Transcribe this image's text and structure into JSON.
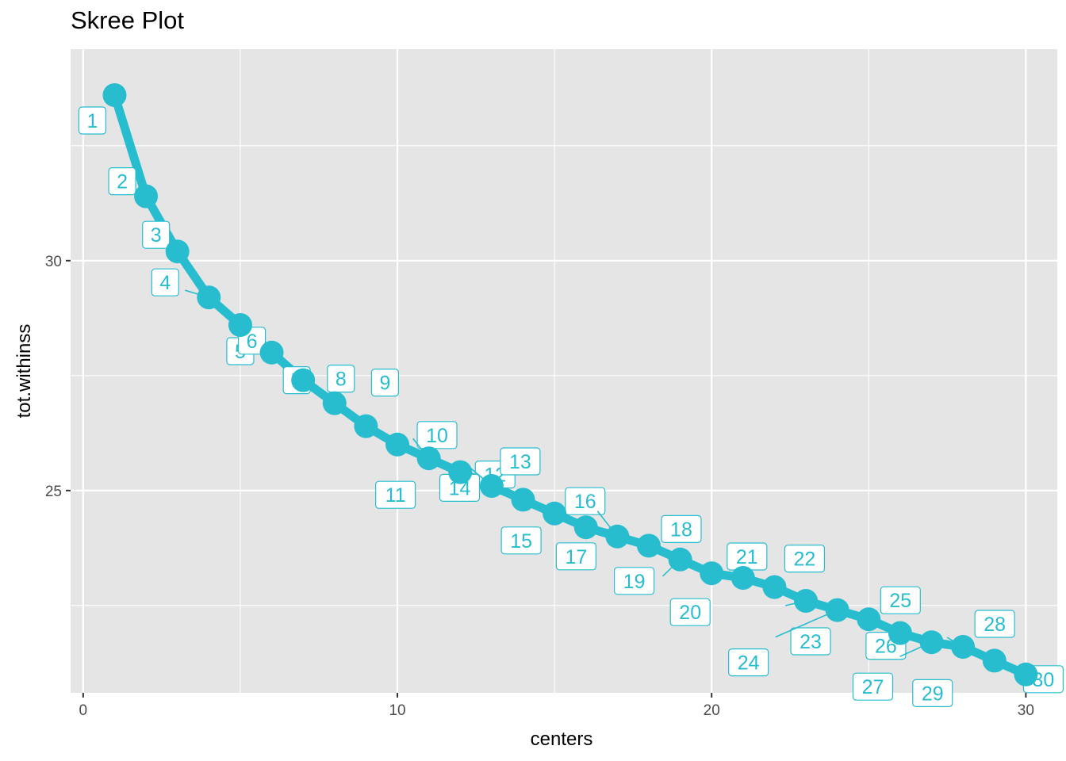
{
  "chart_data": {
    "type": "line",
    "title": "Skree Plot",
    "xlabel": "centers",
    "ylabel": "tot.withinss",
    "xlim": [
      -0.4,
      31.0
    ],
    "ylim": [
      20.6,
      34.6
    ],
    "x_ticks": [
      0,
      10,
      20,
      30
    ],
    "x_tick_labels": [
      "0",
      "10",
      "20",
      "30"
    ],
    "y_ticks": [
      25,
      30
    ],
    "y_tick_labels": [
      "25",
      "30"
    ],
    "grid": true,
    "legend": "none",
    "series": [
      {
        "x": [
          1,
          2,
          3,
          4,
          5,
          6,
          7,
          8,
          9,
          10,
          11,
          12,
          13,
          14,
          15,
          16,
          17,
          18,
          19,
          20,
          21,
          22,
          23,
          24,
          25,
          26,
          27,
          28,
          29,
          30
        ],
        "values": [
          33.6,
          31.4,
          30.2,
          29.2,
          28.6,
          28.0,
          27.4,
          26.9,
          26.4,
          26.0,
          25.7,
          25.4,
          25.1,
          24.8,
          24.5,
          24.2,
          24.0,
          23.8,
          23.5,
          23.2,
          23.1,
          22.9,
          22.6,
          22.4,
          22.2,
          21.9,
          21.7,
          21.6,
          21.3,
          21.0
        ]
      }
    ],
    "point_labels": [
      "1",
      "2",
      "3",
      "4",
      "5",
      "6",
      "7",
      "8",
      "9",
      "10",
      "11",
      "12",
      "13",
      "14",
      "15",
      "16",
      "17",
      "18",
      "19",
      "20",
      "21",
      "22",
      "23",
      "24",
      "25",
      "26",
      "27",
      "28",
      "29",
      "30"
    ],
    "colors": {
      "series": "#27BDCF",
      "panel": "#E5E5E5",
      "grid": "#FFFFFF",
      "label_fill": "#FFFFFF"
    }
  }
}
